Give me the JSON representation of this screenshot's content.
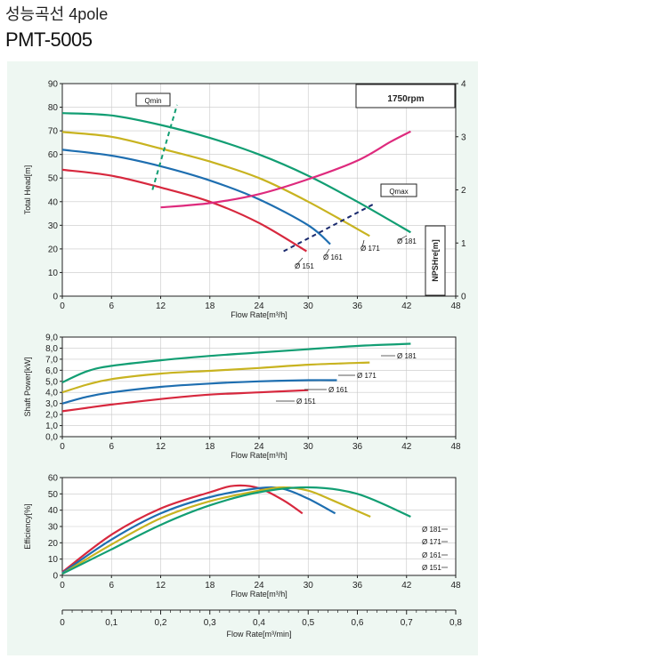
{
  "header": {
    "title_kr": "성능곡선 4pole",
    "model": "PMT-5005"
  },
  "chart_data": [
    {
      "type": "line",
      "name": "head",
      "xlabel": "Flow Rate[m³/h]",
      "ylabel": "Total Head[m]",
      "y2label": "NPSHre[m]",
      "speed_label": "1750rpm",
      "xlim": [
        0,
        48
      ],
      "ylim": [
        0,
        90
      ],
      "y2lim": [
        0,
        4
      ],
      "xticks": [
        "0",
        "6",
        "12",
        "18",
        "24",
        "30",
        "36",
        "42",
        "48"
      ],
      "yticks": [
        "0",
        "10",
        "20",
        "30",
        "40",
        "50",
        "60",
        "70",
        "80",
        "90"
      ],
      "y2ticks": [
        "0",
        "1",
        "2",
        "3",
        "4"
      ],
      "grid": true,
      "series": [
        {
          "name": "Ø 181",
          "color": "#129e73",
          "x": [
            0,
            6,
            12,
            18,
            24,
            30,
            36,
            42.5
          ],
          "y": [
            77.5,
            76.5,
            72.5,
            67,
            60,
            51,
            40,
            27
          ]
        },
        {
          "name": "Ø 171",
          "color": "#c8b320",
          "x": [
            0,
            6,
            12,
            18,
            24,
            30,
            37.5
          ],
          "y": [
            69.5,
            67.5,
            62.5,
            57,
            50,
            40,
            25.5
          ]
        },
        {
          "name": "Ø 161",
          "color": "#1e6eb0",
          "x": [
            0,
            6,
            12,
            18,
            24,
            30,
            32.7
          ],
          "y": [
            62,
            59.5,
            55,
            49,
            41,
            30,
            22
          ]
        },
        {
          "name": "Ø 151",
          "color": "#d7283e",
          "x": [
            0,
            6,
            12,
            18,
            24,
            29.8
          ],
          "y": [
            53.5,
            51,
            46,
            40,
            31,
            19
          ]
        }
      ],
      "npsh": {
        "color": "#de2a7d",
        "x": [
          12,
          18,
          24,
          30,
          36,
          40,
          42.5
        ],
        "y": [
          1.67,
          1.75,
          1.92,
          2.2,
          2.55,
          2.9,
          3.1
        ]
      },
      "qmin": {
        "label": "Qmin",
        "x": [
          11,
          14
        ],
        "y": [
          45,
          81
        ]
      },
      "qmax": {
        "label": "Qmax",
        "x": [
          27,
          38
        ],
        "y": [
          19,
          39
        ]
      }
    },
    {
      "type": "line",
      "name": "power",
      "xlabel": "Flow Rate[m³/h]",
      "ylabel": "Shaft Power[kW]",
      "xlim": [
        0,
        48
      ],
      "ylim": [
        0,
        9
      ],
      "xticks": [
        "0",
        "6",
        "12",
        "18",
        "24",
        "30",
        "36",
        "42",
        "48"
      ],
      "yticks": [
        "0,0",
        "1,0",
        "2,0",
        "3,0",
        "4,0",
        "5,0",
        "6,0",
        "7,0",
        "8,0",
        "9,0"
      ],
      "grid": true,
      "series": [
        {
          "name": "Ø 181",
          "color": "#129e73",
          "x": [
            0,
            3,
            6,
            12,
            18,
            24,
            30,
            36,
            42.5
          ],
          "y": [
            4.9,
            5.9,
            6.4,
            6.9,
            7.3,
            7.6,
            7.9,
            8.2,
            8.4
          ]
        },
        {
          "name": "Ø 171",
          "color": "#c8b320",
          "x": [
            0,
            3,
            6,
            12,
            18,
            24,
            30,
            37.5
          ],
          "y": [
            4.0,
            4.7,
            5.2,
            5.7,
            5.95,
            6.2,
            6.5,
            6.7
          ]
        },
        {
          "name": "Ø 161",
          "color": "#1e6eb0",
          "x": [
            0,
            3,
            6,
            12,
            18,
            24,
            30,
            33.5
          ],
          "y": [
            3.0,
            3.6,
            4.0,
            4.5,
            4.8,
            5.0,
            5.1,
            5.1
          ]
        },
        {
          "name": "Ø 151",
          "color": "#d7283e",
          "x": [
            0,
            3,
            6,
            12,
            18,
            24,
            30
          ],
          "y": [
            2.3,
            2.6,
            2.9,
            3.4,
            3.8,
            4.0,
            4.2
          ]
        }
      ]
    },
    {
      "type": "line",
      "name": "efficiency",
      "xlabel": "Flow Rate[m³/h]",
      "x2label": "Flow Rate[m³/min]",
      "ylabel": "Efficiency[%]",
      "xlim": [
        0,
        48
      ],
      "ylim": [
        0,
        60
      ],
      "xticks": [
        "0",
        "6",
        "12",
        "18",
        "24",
        "30",
        "36",
        "42",
        "48"
      ],
      "x2ticks": [
        "0",
        "0,1",
        "0,2",
        "0,3",
        "0,4",
        "0,5",
        "0,6",
        "0,7",
        "0,8"
      ],
      "yticks": [
        "0",
        "10",
        "20",
        "30",
        "40",
        "50",
        "60"
      ],
      "grid": true,
      "series": [
        {
          "name": "Ø 151",
          "color": "#d7283e",
          "x": [
            0,
            6,
            12,
            18,
            21,
            24,
            27,
            29.3
          ],
          "y": [
            2,
            25,
            41,
            51,
            55,
            53.5,
            46,
            38
          ]
        },
        {
          "name": "Ø 161",
          "color": "#1e6eb0",
          "x": [
            0,
            6,
            12,
            18,
            24,
            27,
            30,
            33.3
          ],
          "y": [
            1.5,
            22,
            38,
            48,
            53.5,
            53,
            47,
            38
          ]
        },
        {
          "name": "Ø 171",
          "color": "#c8b320",
          "x": [
            0,
            6,
            12,
            18,
            24,
            27,
            30,
            33,
            37.6
          ],
          "y": [
            1,
            19,
            35,
            45.5,
            52,
            54,
            52,
            46,
            36
          ]
        },
        {
          "name": "Ø 181",
          "color": "#129e73",
          "x": [
            0,
            6,
            12,
            18,
            24,
            30,
            36,
            42.5
          ],
          "y": [
            1,
            16,
            31,
            43,
            51,
            54,
            50,
            36
          ]
        }
      ],
      "legend": [
        "Ø 181",
        "Ø 171",
        "Ø 161",
        "Ø 151"
      ]
    }
  ]
}
